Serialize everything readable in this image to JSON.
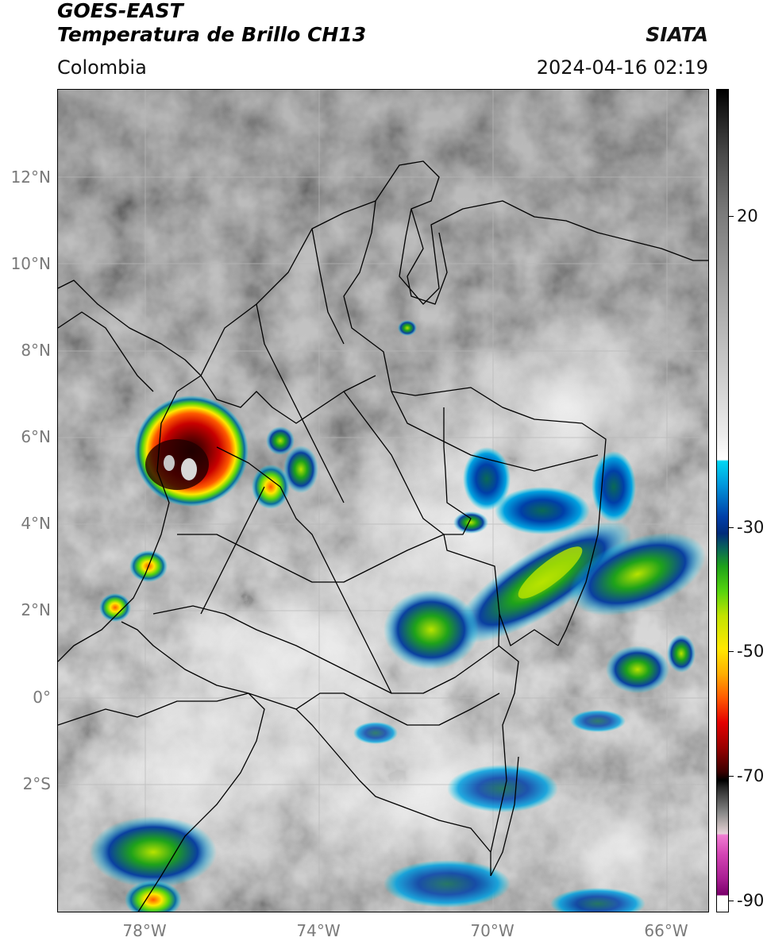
{
  "header": {
    "satellite": "GOES-EAST",
    "product": "Temperatura de Brillo CH13",
    "organization": "SIATA",
    "region": "Colombia",
    "datetime": "2024-04-16 02:19"
  },
  "map": {
    "lon_range": [
      -80,
      -65
    ],
    "lat_range": [
      -5,
      14
    ],
    "y_axis_labels": [
      "12°N",
      "10°N",
      "8°N",
      "6°N",
      "4°N",
      "2°N",
      "0°",
      "2°S"
    ],
    "x_axis_labels": [
      "78°W",
      "74°W",
      "70°W",
      "66°W"
    ],
    "gridlines": true
  },
  "colorbar": {
    "tick_labels": [
      "20",
      "-30",
      "-50",
      "-70",
      "-90"
    ],
    "colors": {
      "warm": "#808080",
      "cold_cyan": "#00d6f2",
      "cold_blue": "#003fa8",
      "green": "#1ea21a",
      "yellow": "#ffe800",
      "red": "#e40000",
      "black": "#000000",
      "magenta": "#d445b4"
    }
  }
}
